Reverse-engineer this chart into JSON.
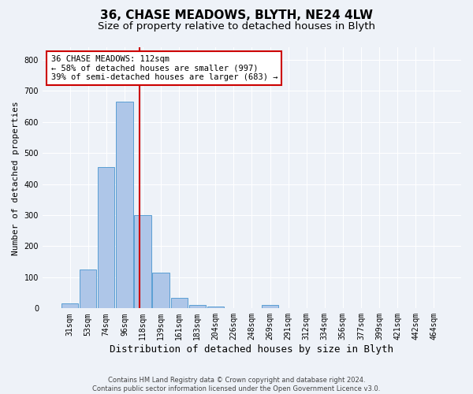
{
  "title_line1": "36, CHASE MEADOWS, BLYTH, NE24 4LW",
  "title_line2": "Size of property relative to detached houses in Blyth",
  "xlabel": "Distribution of detached houses by size in Blyth",
  "ylabel": "Number of detached properties",
  "footnote": "Contains HM Land Registry data © Crown copyright and database right 2024.\nContains public sector information licensed under the Open Government Licence v3.0.",
  "bar_labels": [
    "31sqm",
    "53sqm",
    "74sqm",
    "96sqm",
    "118sqm",
    "139sqm",
    "161sqm",
    "183sqm",
    "204sqm",
    "226sqm",
    "248sqm",
    "269sqm",
    "291sqm",
    "312sqm",
    "334sqm",
    "356sqm",
    "377sqm",
    "399sqm",
    "421sqm",
    "442sqm",
    "464sqm"
  ],
  "bar_values": [
    15,
    125,
    455,
    665,
    300,
    115,
    35,
    12,
    5,
    0,
    0,
    10,
    0,
    0,
    0,
    0,
    0,
    0,
    0,
    0,
    0
  ],
  "bar_color": "#aec6e8",
  "bar_edgecolor": "#5a9fd4",
  "property_line_x": 3.82,
  "property_line_color": "#cc0000",
  "annotation_text": "36 CHASE MEADOWS: 112sqm\n← 58% of detached houses are smaller (997)\n39% of semi-detached houses are larger (683) →",
  "annotation_box_color": "#ffffff",
  "annotation_box_edgecolor": "#cc0000",
  "ylim": [
    0,
    840
  ],
  "yticks": [
    0,
    100,
    200,
    300,
    400,
    500,
    600,
    700,
    800
  ],
  "background_color": "#eef2f8",
  "plot_background": "#eef2f8",
  "grid_color": "#ffffff",
  "title1_fontsize": 11,
  "title2_fontsize": 9.5,
  "xlabel_fontsize": 9,
  "ylabel_fontsize": 8,
  "tick_fontsize": 7,
  "annotation_fontsize": 7.5,
  "footnote_fontsize": 6
}
